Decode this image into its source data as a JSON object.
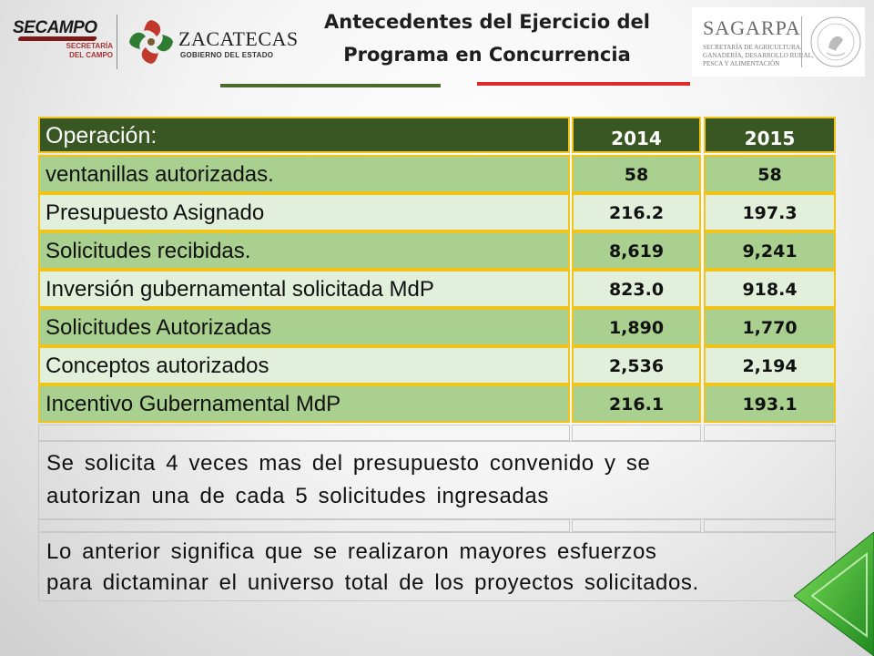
{
  "header": {
    "title_line1": "Antecedentes del Ejercicio del",
    "title_line2": "Programa en Concurrencia",
    "secampo": {
      "name": "SECAMPO",
      "sub_line1": "SECRETARÍA",
      "sub_line2": "DEL CAMPO"
    },
    "zacatecas": {
      "name": "ZACATECAS",
      "sub": "GOBIERNO DEL ESTADO"
    },
    "sagarpa": {
      "name": "SAGARPA",
      "sub_line1": "SECRETARÍA DE AGRICULTURA,",
      "sub_line2": "GANADERÍA, DESARROLLO RURAL,",
      "sub_line3": "PESCA Y ALIMENTACIÓN",
      "seal_text": "ESTADOS UNIDOS MEXICANOS"
    }
  },
  "table": {
    "header": {
      "label": "Operación:",
      "col1": "2014",
      "col2": "2015"
    },
    "rows": [
      {
        "label": "ventanillas autorizadas.",
        "v2014": "58",
        "v2015": "58"
      },
      {
        "label": "Presupuesto Asignado",
        "v2014": "216.2",
        "v2015": "197.3"
      },
      {
        "label": "Solicitudes recibidas.",
        "v2014": "8,619",
        "v2015": "9,241"
      },
      {
        "label": "Inversión gubernamental solicitada MdP",
        "v2014": "823.0",
        "v2015": "918.4"
      },
      {
        "label": "Solicitudes Autorizadas",
        "v2014": "1,890",
        "v2015": "1,770"
      },
      {
        "label": "Conceptos autorizados",
        "v2014": "2,536",
        "v2015": "2,194"
      },
      {
        "label": "Incentivo Gubernamental MdP",
        "v2014": "216.1",
        "v2015": "193.1"
      }
    ],
    "note1_line1": "Se solicita 4 veces mas del presupuesto convenido y se",
    "note1_line2": "autorizan una de cada 5 solicitudes ingresadas",
    "note2_line1": "Lo anterior significa que se realizaron mayores esfuerzos",
    "note2_line2": "para dictaminar el universo total de los proyectos solicitados."
  },
  "colors": {
    "header_fill": "#385723",
    "row_dark": "#a9d08e",
    "row_light": "#e2efda",
    "cell_border": "#f0c419",
    "accent_green": "#4b6b2a",
    "accent_red": "#e12a2a"
  }
}
